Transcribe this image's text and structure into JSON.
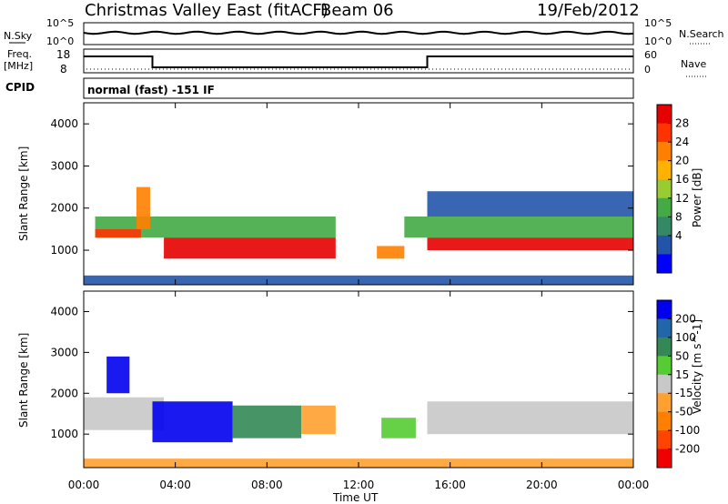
{
  "header": {
    "title": "Christmas Valley East (fitACF)",
    "beam": "Beam 06",
    "date": "19/Feb/2012"
  },
  "nsky_panel": {
    "left_label": "N.Sky",
    "right_label": "N.Search",
    "left_ticks": [
      "10^5",
      "10^0"
    ],
    "right_ticks": [
      "10^5",
      "10^0"
    ]
  },
  "freq_panel": {
    "left_label_1": "Freq.",
    "left_label_2": "[MHz]",
    "right_label": "Nave",
    "left_ticks": [
      "18",
      "8"
    ],
    "right_ticks": [
      "60",
      "0"
    ],
    "cpid_label": "CPID",
    "cpid_text": "normal (fast) -151 IF"
  },
  "chart_data": [
    {
      "type": "heatmap",
      "title": "",
      "quantity": "Power",
      "xlabel": "",
      "ylabel": "Slant Range [km]",
      "x_ticks": [
        "00:00",
        "04:00",
        "08:00",
        "12:00",
        "16:00",
        "20:00",
        "00:00"
      ],
      "y_ticks": [
        "1000",
        "2000",
        "3000",
        "4000"
      ],
      "ylim": [
        180,
        4500
      ],
      "colorbar": {
        "label": "Power [dB]",
        "ticks": [
          "28",
          "24",
          "20",
          "16",
          "12",
          "8",
          "4"
        ],
        "colors": [
          "#e60000",
          "#ff3300",
          "#ff8000",
          "#ffb300",
          "#99cc33",
          "#44aa44",
          "#338866",
          "#2255aa",
          "#0000ff"
        ]
      },
      "regions": [
        {
          "t0": 0.5,
          "t1": 11.0,
          "r0": 1300,
          "r1": 1800,
          "level": "#44aa44"
        },
        {
          "t0": 0.5,
          "t1": 2.5,
          "r0": 1300,
          "r1": 1500,
          "level": "#ff3300"
        },
        {
          "t0": 3.5,
          "t1": 11.0,
          "r0": 800,
          "r1": 1300,
          "level": "#e60000"
        },
        {
          "t0": 2.3,
          "t1": 2.9,
          "r0": 1500,
          "r1": 2500,
          "level": "#ff8000"
        },
        {
          "t0": 14.0,
          "t1": 24.0,
          "r0": 1300,
          "r1": 1800,
          "level": "#44aa44"
        },
        {
          "t0": 15.0,
          "t1": 24.0,
          "r0": 1000,
          "r1": 1300,
          "level": "#e60000"
        },
        {
          "t0": 15.0,
          "t1": 24.0,
          "r0": 1800,
          "r1": 2400,
          "level": "#2255aa"
        },
        {
          "t0": 12.8,
          "t1": 14.0,
          "r0": 800,
          "r1": 1100,
          "level": "#ff8000"
        },
        {
          "t0": 0.0,
          "t1": 24.0,
          "r0": 180,
          "r1": 400,
          "level": "#2255aa"
        }
      ]
    },
    {
      "type": "heatmap",
      "title": "",
      "quantity": "Velocity",
      "xlabel": "Time UT",
      "ylabel": "Slant Range [km]",
      "x_ticks": [
        "00:00",
        "04:00",
        "08:00",
        "12:00",
        "16:00",
        "20:00",
        "00:00"
      ],
      "y_ticks": [
        "1000",
        "2000",
        "3000",
        "4000"
      ],
      "ylim": [
        180,
        4500
      ],
      "colorbar": {
        "label": "Velocity [m s^-1]",
        "ticks": [
          "200",
          "100",
          "50",
          "15",
          "-15",
          "-50",
          "-100",
          "-200"
        ],
        "colors": [
          "#0000ee",
          "#2266aa",
          "#338855",
          "#55cc33",
          "#c8c8c8",
          "#ffa030",
          "#ff8000",
          "#ff4400",
          "#ee0000"
        ]
      },
      "regions": [
        {
          "t0": 0.0,
          "t1": 3.5,
          "r0": 1100,
          "r1": 1900,
          "level": "#c8c8c8"
        },
        {
          "t0": 3.0,
          "t1": 6.5,
          "r0": 800,
          "r1": 1800,
          "level": "#0000ee"
        },
        {
          "t0": 6.5,
          "t1": 9.5,
          "r0": 900,
          "r1": 1700,
          "level": "#338855"
        },
        {
          "t0": 9.5,
          "t1": 11.0,
          "r0": 1000,
          "r1": 1700,
          "level": "#ffa030"
        },
        {
          "t0": 15.0,
          "t1": 24.0,
          "r0": 1000,
          "r1": 1800,
          "level": "#c8c8c8"
        },
        {
          "t0": 13.0,
          "t1": 14.5,
          "r0": 900,
          "r1": 1400,
          "level": "#55cc33"
        },
        {
          "t0": 0.0,
          "t1": 24.0,
          "r0": 180,
          "r1": 400,
          "level": "#ffa030"
        },
        {
          "t0": 1.0,
          "t1": 2.0,
          "r0": 2000,
          "r1": 2900,
          "level": "#0000ee"
        }
      ]
    }
  ]
}
